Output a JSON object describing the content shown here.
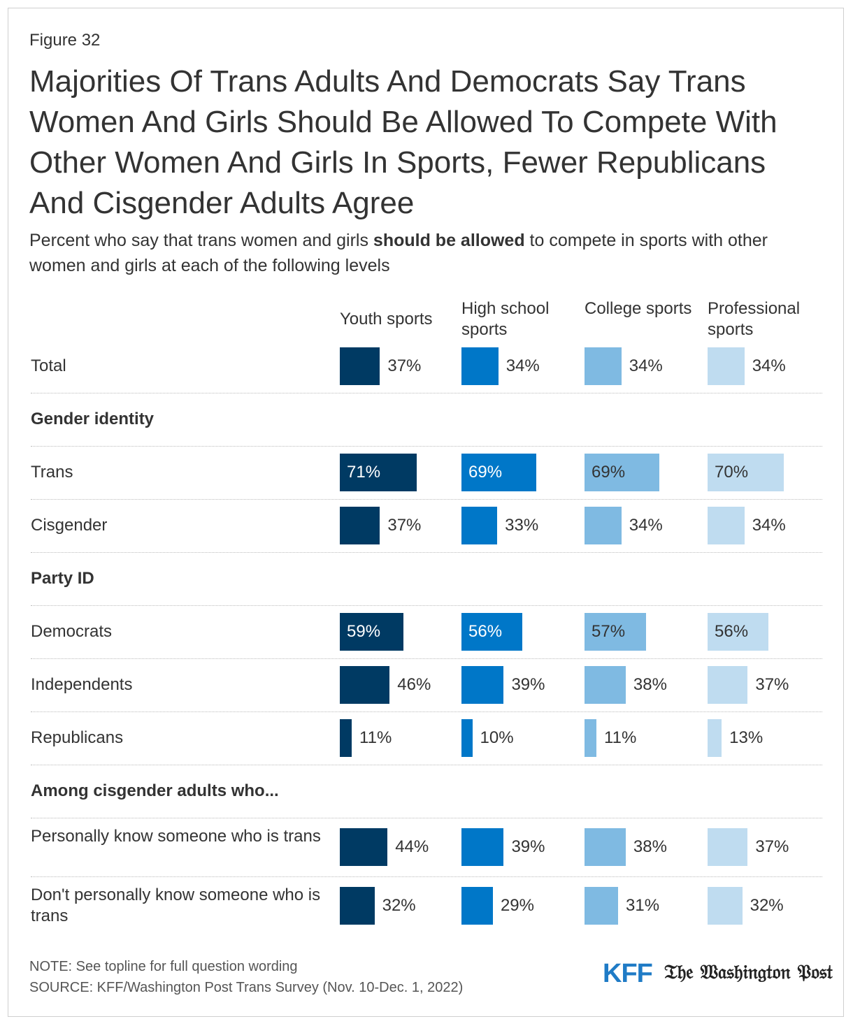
{
  "figure_label": "Figure 32",
  "title": "Majorities Of Trans Adults And Democrats Say Trans Women And Girls Should Be Allowed To Compete With Other Women And Girls In Sports, Fewer Republicans And Cisgender Adults Agree",
  "subtitle": {
    "pre": "Percent who say that trans women and girls ",
    "bold": "should be allowed",
    "post": " to compete in sports with other women and girls at each of the following levels"
  },
  "note": "NOTE: See topline for full question wording",
  "source": "SOURCE: KFF/Washington Post Trans Survey (Nov. 10-Dec. 1, 2022)",
  "logos": {
    "kff": "KFF",
    "wapo": "The Washington Post"
  },
  "chart_data": {
    "type": "bar",
    "orientation": "horizontal",
    "xlim": [
      0,
      100
    ],
    "unit": "%",
    "colors": [
      "#003a63",
      "#0077c8",
      "#7fbae2",
      "#bfdcf0"
    ],
    "columns": [
      "Youth sports",
      "High school sports",
      "College sports",
      "Professional sports"
    ],
    "rows": [
      {
        "label": "Total",
        "values": [
          37,
          34,
          34,
          34
        ]
      },
      {
        "section": "Gender identity"
      },
      {
        "label": "Trans",
        "values": [
          71,
          69,
          69,
          70
        ]
      },
      {
        "label": "Cisgender",
        "values": [
          37,
          33,
          34,
          34
        ]
      },
      {
        "section": "Party ID"
      },
      {
        "label": "Democrats",
        "values": [
          59,
          56,
          57,
          56
        ]
      },
      {
        "label": "Independents",
        "values": [
          46,
          39,
          38,
          37
        ]
      },
      {
        "label": "Republicans",
        "values": [
          11,
          10,
          11,
          13
        ]
      },
      {
        "section": "Among cisgender adults who..."
      },
      {
        "label": "Personally know someone who is trans",
        "values": [
          44,
          39,
          38,
          37
        ]
      },
      {
        "label": "Don't personally know someone who is trans",
        "values": [
          32,
          29,
          31,
          32
        ]
      }
    ]
  }
}
